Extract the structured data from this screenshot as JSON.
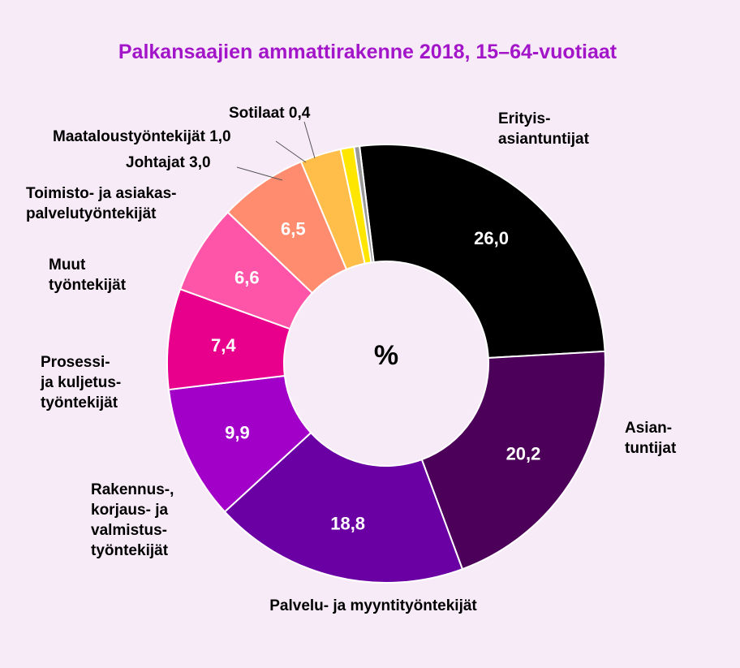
{
  "chart_data": {
    "type": "pie",
    "title": "Palkansaajien ammattirakenne 2018, 15–64-vuotiaat",
    "center_label": "%",
    "slices": [
      {
        "label": "Erityis-\nasiantuntijat",
        "value": 26.0,
        "value_label": "26,0",
        "color": "#000000"
      },
      {
        "label": "Asian-\ntuntijat",
        "value": 20.2,
        "value_label": "20,2",
        "color": "#4d0059"
      },
      {
        "label": "Palvelu- ja myyntityöntekijät",
        "value": 18.8,
        "value_label": "18,8",
        "color": "#6a00a3"
      },
      {
        "label": "Rakennus-,\nkorjaus- ja\nvalmistus-\ntyöntekijät",
        "value": 9.9,
        "value_label": "9,9",
        "color": "#a200c8"
      },
      {
        "label": "Prosessi-\nja kuljetus-\ntyöntekijät",
        "value": 7.4,
        "value_label": "7,4",
        "color": "#e8008c"
      },
      {
        "label": "Muut\ntyöntekijät",
        "value": 6.6,
        "value_label": "6,6",
        "color": "#ff55a8"
      },
      {
        "label": "Toimisto- ja asiakas-\npalvelutyöntekijät",
        "value": 6.5,
        "value_label": "6,5",
        "color": "#ff8c6e"
      },
      {
        "label": "Johtajat 3,0",
        "value": 3.0,
        "value_label": "",
        "color": "#ffbe4a"
      },
      {
        "label": "Maataloustyöntekijät 1,0",
        "value": 1.0,
        "value_label": "",
        "color": "#ffe600"
      },
      {
        "label": "Sotilaat 0,4",
        "value": 0.4,
        "value_label": "",
        "color": "#999999"
      }
    ]
  }
}
